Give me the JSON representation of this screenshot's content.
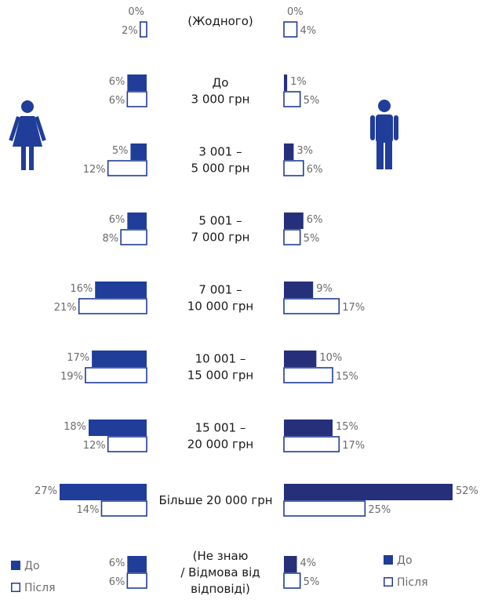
{
  "chart_data": {
    "type": "bar",
    "orientation": "horizontal-butterfly",
    "categories": [
      [
        "(Жодного)"
      ],
      [
        "До",
        "3 000 грн"
      ],
      [
        "3 001 –",
        "5 000 грн"
      ],
      [
        "5 001 –",
        "7 000 грн"
      ],
      [
        "7 001 –",
        "10 000 грн"
      ],
      [
        "10 001 –",
        "15 000 грн"
      ],
      [
        "15 001 –",
        "20 000 грн"
      ],
      [
        "Більше 20 000 грн"
      ],
      [
        "(Не знаю",
        "/ Відмова від",
        "відповіді)"
      ]
    ],
    "groups": [
      {
        "side": "left",
        "icon": "female-icon",
        "series": [
          {
            "name": "До",
            "values": [
              0,
              6,
              5,
              6,
              16,
              17,
              18,
              27,
              6
            ]
          },
          {
            "name": "Після",
            "values": [
              2,
              6,
              12,
              8,
              21,
              19,
              12,
              14,
              6
            ]
          }
        ]
      },
      {
        "side": "right",
        "icon": "male-icon",
        "series": [
          {
            "name": "До",
            "values": [
              0,
              1,
              3,
              6,
              9,
              10,
              15,
              52,
              4
            ]
          },
          {
            "name": "Після",
            "values": [
              4,
              5,
              6,
              5,
              17,
              15,
              17,
              25,
              5
            ]
          }
        ]
      }
    ],
    "value_suffix": "%",
    "legend": [
      {
        "label": "До",
        "style": "filled"
      },
      {
        "label": "Після",
        "style": "outline"
      }
    ],
    "legend_placement": "bottom-left and bottom-right",
    "colors": {
      "female_bar": "#1f3d99",
      "male_bar": "#26307a",
      "outline": "#1f3d99"
    },
    "grid": false
  }
}
